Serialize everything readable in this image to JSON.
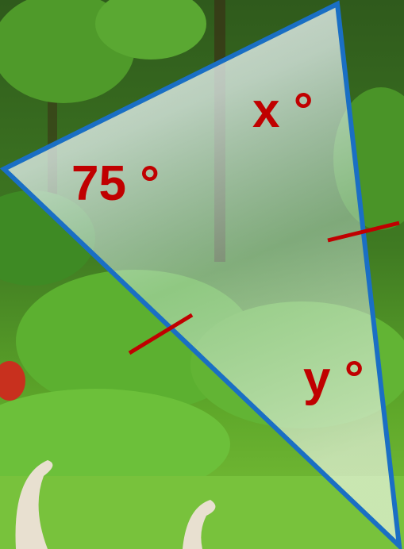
{
  "labels": {
    "top_angle": "x °",
    "left_angle": "75 °",
    "bottom_angle": "y °"
  }
}
